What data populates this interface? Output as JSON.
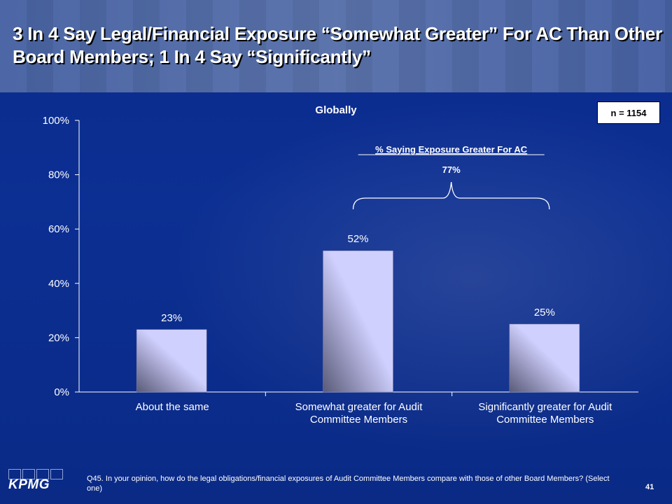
{
  "slide": {
    "title": "3 In 4 Say Legal/Financial Exposure “Somewhat Greater” For AC Than Other Board Members; 1 In 4 Say “Significantly”",
    "n_label": "n = 1154",
    "footnote": "Q45. In your opinion, how do the legal obligations/financial exposures of Audit Committee Members compare with those of other Board Members? (Select one)",
    "page_number": "41",
    "logo_text": "KPMG"
  },
  "chart_data": {
    "type": "bar",
    "title": "Globally",
    "categories": [
      [
        "About the same"
      ],
      [
        "Somewhat greater for Audit",
        "Committee Members"
      ],
      [
        "Significantly greater for Audit",
        "Committee Members"
      ]
    ],
    "values": [
      23,
      52,
      25
    ],
    "value_labels": [
      "23%",
      "52%",
      "25%"
    ],
    "ylim": [
      0,
      100
    ],
    "yticks": [
      0,
      20,
      40,
      60,
      80,
      100
    ],
    "ytick_labels": [
      "0%",
      "20%",
      "40%",
      "60%",
      "80%",
      "100%"
    ],
    "annotation": {
      "label": "% Saying Exposure Greater For AC",
      "value_label": "77%",
      "spans_categories": [
        1,
        2
      ]
    },
    "colors": {
      "bar_light": "#d0d0ff",
      "bar_dark": "#5a5a78",
      "text": "#ffffff"
    }
  }
}
